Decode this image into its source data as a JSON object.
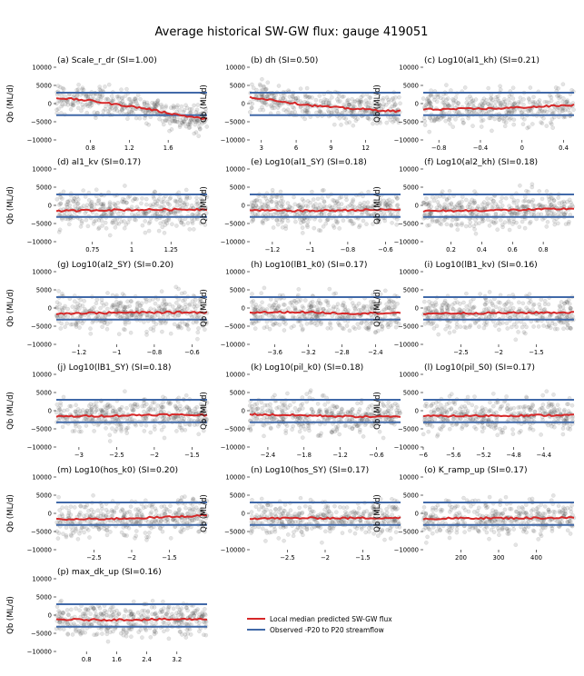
{
  "figure": {
    "title": "Average historical SW-GW flux: gauge 419051",
    "legend": [
      {
        "label": "Local median predicted SW-GW flux",
        "color": "#d62728"
      },
      {
        "label": "Observed -P20 to P20 streamflow",
        "color": "#4169a8"
      }
    ]
  },
  "chart_data": [
    {
      "type": "scatter",
      "title": "(a) Scale_r_dr (SI=1.00)",
      "ylabel": "Qb (ML/d)",
      "ylim": [
        -10000,
        10000
      ],
      "yticks": [
        -10000,
        -5000,
        0,
        5000,
        10000
      ],
      "xlim": [
        0.45,
        2.0
      ],
      "xticks": [
        0.8,
        1.2,
        1.6
      ],
      "hlines": [
        -3200,
        3000
      ],
      "median": {
        "x": [
          0.5,
          0.8,
          1.0,
          1.2,
          1.4,
          1.6,
          1.8,
          2.0
        ],
        "y": [
          1500,
          800,
          0,
          -700,
          -1500,
          -2600,
          -3500,
          -4300
        ]
      },
      "trend_slope": -3500,
      "spread": 2800
    },
    {
      "type": "scatter",
      "title": "(b) dh (SI=0.50)",
      "ylabel": "Qb (ML/d)",
      "ylim": [
        -10000,
        10000
      ],
      "yticks": [
        -10000,
        -5000,
        0,
        5000,
        10000
      ],
      "xlim": [
        2,
        15
      ],
      "xticks": [
        3,
        6,
        9,
        12
      ],
      "hlines": [
        -3200,
        3000
      ],
      "median": {
        "x": [
          2,
          4,
          6,
          8,
          10,
          12,
          14,
          15
        ],
        "y": [
          1800,
          1000,
          0,
          -700,
          -1200,
          -1600,
          -2000,
          -2100
        ]
      },
      "trend_slope": -1800,
      "spread": 3000
    },
    {
      "type": "scatter",
      "title": "(c) Log10(al1_kh) (SI=0.21)",
      "ylabel": "Qb (ML/d)",
      "ylim": [
        -10000,
        10000
      ],
      "yticks": [
        -10000,
        -5000,
        0,
        5000,
        10000
      ],
      "xlim": [
        -0.95,
        0.5
      ],
      "xticks": [
        -0.8,
        -0.4,
        0.0,
        0.4
      ],
      "hlines": [
        -3200,
        3000
      ],
      "median": {
        "x": [
          -0.95,
          -0.6,
          -0.2,
          0.2,
          0.5
        ],
        "y": [
          -1600,
          -1500,
          -1300,
          -800,
          -400
        ]
      },
      "trend_slope": 600,
      "spread": 3500
    },
    {
      "type": "scatter",
      "title": "(d) al1_kv (SI=0.17)",
      "ylabel": "Qb (ML/d)",
      "ylim": [
        -10000,
        10000
      ],
      "yticks": [
        -10000,
        -5000,
        0,
        5000,
        10000
      ],
      "xlim": [
        0.52,
        1.48
      ],
      "xticks": [
        0.75,
        1.0,
        1.25
      ],
      "hlines": [
        -3200,
        3000
      ],
      "median": {
        "x": [
          0.52,
          0.8,
          1.1,
          1.48
        ],
        "y": [
          -1600,
          -1300,
          -1200,
          -1100
        ]
      },
      "trend_slope": 200,
      "spread": 3500
    },
    {
      "type": "scatter",
      "title": "(e) Log10(al1_SY) (SI=0.18)",
      "ylabel": "Qb (ML/d)",
      "ylim": [
        -10000,
        10000
      ],
      "yticks": [
        -10000,
        -5000,
        0,
        5000,
        10000
      ],
      "xlim": [
        -1.32,
        -0.52
      ],
      "xticks": [
        -1.2,
        -1.0,
        -0.8,
        -0.6
      ],
      "hlines": [
        -3200,
        3000
      ],
      "median": {
        "x": [
          -1.32,
          -1.0,
          -0.75,
          -0.52
        ],
        "y": [
          -1400,
          -1500,
          -1300,
          -1200
        ]
      },
      "trend_slope": 100,
      "spread": 3500
    },
    {
      "type": "scatter",
      "title": "(f) Log10(al2_kh) (SI=0.18)",
      "ylabel": "Qb (ML/d)",
      "ylim": [
        -10000,
        10000
      ],
      "yticks": [
        -10000,
        -5000,
        0,
        5000,
        10000
      ],
      "xlim": [
        0.02,
        1.0
      ],
      "xticks": [
        0.2,
        0.4,
        0.6,
        0.8
      ],
      "hlines": [
        -3200,
        3000
      ],
      "median": {
        "x": [
          0.02,
          0.4,
          0.7,
          1.0
        ],
        "y": [
          -1600,
          -1400,
          -1200,
          -900
        ]
      },
      "trend_slope": 300,
      "spread": 3500
    },
    {
      "type": "scatter",
      "title": "(g) Log10(al2_SY) (SI=0.20)",
      "ylabel": "Qb (ML/d)",
      "ylim": [
        -10000,
        10000
      ],
      "yticks": [
        -10000,
        -5000,
        0,
        5000,
        10000
      ],
      "xlim": [
        -1.32,
        -0.52
      ],
      "xticks": [
        -1.2,
        -1.0,
        -0.8,
        -0.6
      ],
      "hlines": [
        -3200,
        3000
      ],
      "median": {
        "x": [
          -1.32,
          -1.0,
          -0.75,
          -0.52
        ],
        "y": [
          -1500,
          -1300,
          -1200,
          -1200
        ]
      },
      "trend_slope": 100,
      "spread": 3500
    },
    {
      "type": "scatter",
      "title": "(h) Log10(lB1_k0) (SI=0.17)",
      "ylabel": "Qb (ML/d)",
      "ylim": [
        -10000,
        10000
      ],
      "yticks": [
        -10000,
        -5000,
        0,
        5000,
        10000
      ],
      "xlim": [
        -3.9,
        -2.1
      ],
      "xticks": [
        -3.6,
        -3.2,
        -2.8,
        -2.4
      ],
      "hlines": [
        -3200,
        3000
      ],
      "median": {
        "x": [
          -3.9,
          -3.3,
          -2.7,
          -2.1
        ],
        "y": [
          -1200,
          -1100,
          -1500,
          -1300
        ]
      },
      "trend_slope": -100,
      "spread": 3500
    },
    {
      "type": "scatter",
      "title": "(i) Log10(lB1_kv) (SI=0.16)",
      "ylabel": "Qb (ML/d)",
      "ylim": [
        -10000,
        10000
      ],
      "yticks": [
        -10000,
        -5000,
        0,
        5000,
        10000
      ],
      "xlim": [
        -3.0,
        -1.0
      ],
      "xticks": [
        -2.5,
        -2.0,
        -1.5
      ],
      "hlines": [
        -3200,
        3000
      ],
      "median": {
        "x": [
          -3.0,
          -2.3,
          -1.6,
          -1.0
        ],
        "y": [
          -1500,
          -1400,
          -1300,
          -1200
        ]
      },
      "trend_slope": 100,
      "spread": 3500
    },
    {
      "type": "scatter",
      "title": "(j) Log10(lB1_SY) (SI=0.18)",
      "ylabel": "Qb (ML/d)",
      "ylim": [
        -10000,
        10000
      ],
      "yticks": [
        -10000,
        -5000,
        0,
        5000,
        10000
      ],
      "xlim": [
        -3.3,
        -1.3
      ],
      "xticks": [
        -3.0,
        -2.5,
        -2.0,
        -1.5
      ],
      "hlines": [
        -3200,
        3000
      ],
      "median": {
        "x": [
          -3.3,
          -2.6,
          -2.0,
          -1.3
        ],
        "y": [
          -1600,
          -1400,
          -1100,
          -1200
        ]
      },
      "trend_slope": 100,
      "spread": 3500
    },
    {
      "type": "scatter",
      "title": "(k) Log10(pil_k0) (SI=0.18)",
      "ylabel": "Qb (ML/d)",
      "ylim": [
        -10000,
        10000
      ],
      "yticks": [
        -10000,
        -5000,
        0,
        5000,
        10000
      ],
      "xlim": [
        -2.7,
        -0.2
      ],
      "xticks": [
        -2.4,
        -1.8,
        -1.2,
        -0.6
      ],
      "hlines": [
        -3200,
        3000
      ],
      "median": {
        "x": [
          -2.7,
          -1.8,
          -1.0,
          -0.2
        ],
        "y": [
          -1000,
          -1300,
          -1600,
          -1700
        ]
      },
      "trend_slope": -200,
      "spread": 3500
    },
    {
      "type": "scatter",
      "title": "(l) Log10(pil_S0) (SI=0.17)",
      "ylabel": "Qb (ML/d)",
      "ylim": [
        -10000,
        10000
      ],
      "yticks": [
        -10000,
        -5000,
        0,
        5000,
        10000
      ],
      "xlim": [
        -6.0,
        -4.0
      ],
      "xticks": [
        -6.0,
        -5.6,
        -5.2,
        -4.8,
        -4.4
      ],
      "hlines": [
        -3200,
        3000
      ],
      "median": {
        "x": [
          -6.0,
          -5.3,
          -4.6,
          -4.0
        ],
        "y": [
          -1500,
          -1400,
          -1300,
          -1200
        ]
      },
      "trend_slope": 100,
      "spread": 3500
    },
    {
      "type": "scatter",
      "title": "(m) Log10(hos_k0) (SI=0.20)",
      "ylabel": "Qb (ML/d)",
      "ylim": [
        -10000,
        10000
      ],
      "yticks": [
        -10000,
        -5000,
        0,
        5000,
        10000
      ],
      "xlim": [
        -3.0,
        -1.0
      ],
      "xticks": [
        -2.5,
        -2.0,
        -1.5
      ],
      "hlines": [
        -3200,
        3000
      ],
      "median": {
        "x": [
          -3.0,
          -2.3,
          -1.6,
          -1.0
        ],
        "y": [
          -1700,
          -1500,
          -1100,
          -500
        ]
      },
      "trend_slope": 500,
      "spread": 3500
    },
    {
      "type": "scatter",
      "title": "(n) Log10(hos_SY) (SI=0.17)",
      "ylabel": "Qb (ML/d)",
      "ylim": [
        -10000,
        10000
      ],
      "yticks": [
        -10000,
        -5000,
        0,
        5000,
        10000
      ],
      "xlim": [
        -3.0,
        -1.0
      ],
      "xticks": [
        -2.5,
        -2.0,
        -1.5
      ],
      "hlines": [
        -3200,
        3000
      ],
      "median": {
        "x": [
          -3.0,
          -2.3,
          -1.6,
          -1.0
        ],
        "y": [
          -1400,
          -1300,
          -1300,
          -1200
        ]
      },
      "trend_slope": 50,
      "spread": 3500
    },
    {
      "type": "scatter",
      "title": "(o) K_ramp_up (SI=0.17)",
      "ylabel": "Qb (ML/d)",
      "ylim": [
        -10000,
        10000
      ],
      "yticks": [
        -10000,
        -5000,
        0,
        5000,
        10000
      ],
      "xlim": [
        100,
        500
      ],
      "xticks": [
        200,
        300,
        400
      ],
      "hlines": [
        -3200,
        3000
      ],
      "median": {
        "x": [
          100,
          230,
          370,
          500
        ],
        "y": [
          -1500,
          -1300,
          -1300,
          -1200
        ]
      },
      "trend_slope": 50,
      "spread": 3500
    },
    {
      "type": "scatter",
      "title": "(p) max_dk_up (SI=0.16)",
      "ylabel": "Qb (ML/d)",
      "ylim": [
        -10000,
        10000
      ],
      "yticks": [
        -10000,
        -5000,
        0,
        5000,
        10000
      ],
      "xlim": [
        0.0,
        4.0
      ],
      "xticks": [
        0.8,
        1.6,
        2.4,
        3.2
      ],
      "hlines": [
        -3200,
        3000
      ],
      "median": {
        "x": [
          0.0,
          1.3,
          2.6,
          4.0
        ],
        "y": [
          -1200,
          -1300,
          -1200,
          -1100
        ]
      },
      "trend_slope": 30,
      "spread": 3500
    }
  ]
}
